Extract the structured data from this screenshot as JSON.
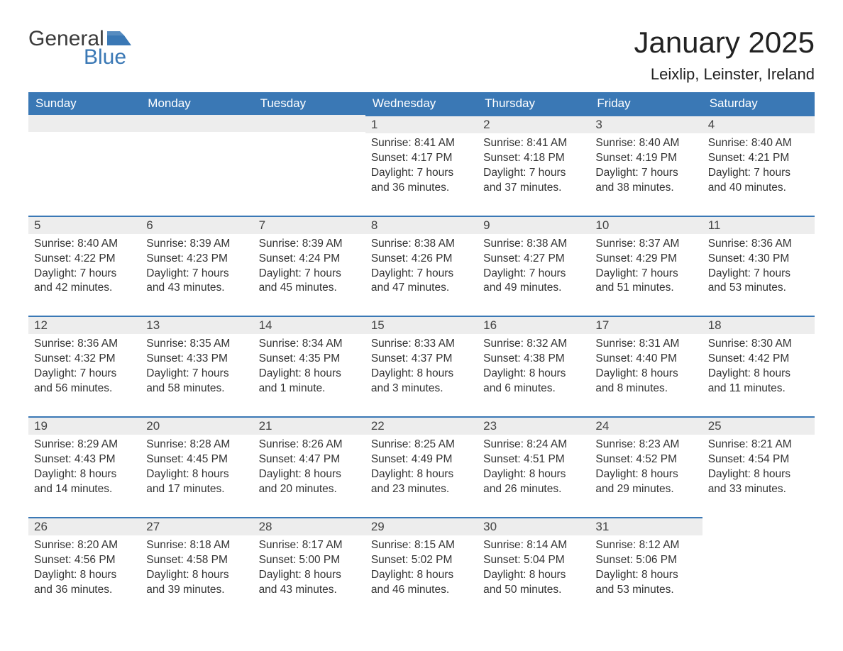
{
  "brand": {
    "general": "General",
    "blue": "Blue",
    "flag_color": "#3a78b5"
  },
  "title": "January 2025",
  "subtitle": "Leixlip, Leinster, Ireland",
  "header_bg": "#3a78b5",
  "header_fg": "#ffffff",
  "datebar_bg": "#ededed",
  "datebar_border": "#3a78b5",
  "text_color": "#333333",
  "day_names": [
    "Sunday",
    "Monday",
    "Tuesday",
    "Wednesday",
    "Thursday",
    "Friday",
    "Saturday"
  ],
  "weeks": [
    [
      null,
      null,
      null,
      {
        "n": "1",
        "sr": "Sunrise: 8:41 AM",
        "ss": "Sunset: 4:17 PM",
        "d1": "Daylight: 7 hours",
        "d2": "and 36 minutes."
      },
      {
        "n": "2",
        "sr": "Sunrise: 8:41 AM",
        "ss": "Sunset: 4:18 PM",
        "d1": "Daylight: 7 hours",
        "d2": "and 37 minutes."
      },
      {
        "n": "3",
        "sr": "Sunrise: 8:40 AM",
        "ss": "Sunset: 4:19 PM",
        "d1": "Daylight: 7 hours",
        "d2": "and 38 minutes."
      },
      {
        "n": "4",
        "sr": "Sunrise: 8:40 AM",
        "ss": "Sunset: 4:21 PM",
        "d1": "Daylight: 7 hours",
        "d2": "and 40 minutes."
      }
    ],
    [
      {
        "n": "5",
        "sr": "Sunrise: 8:40 AM",
        "ss": "Sunset: 4:22 PM",
        "d1": "Daylight: 7 hours",
        "d2": "and 42 minutes."
      },
      {
        "n": "6",
        "sr": "Sunrise: 8:39 AM",
        "ss": "Sunset: 4:23 PM",
        "d1": "Daylight: 7 hours",
        "d2": "and 43 minutes."
      },
      {
        "n": "7",
        "sr": "Sunrise: 8:39 AM",
        "ss": "Sunset: 4:24 PM",
        "d1": "Daylight: 7 hours",
        "d2": "and 45 minutes."
      },
      {
        "n": "8",
        "sr": "Sunrise: 8:38 AM",
        "ss": "Sunset: 4:26 PM",
        "d1": "Daylight: 7 hours",
        "d2": "and 47 minutes."
      },
      {
        "n": "9",
        "sr": "Sunrise: 8:38 AM",
        "ss": "Sunset: 4:27 PM",
        "d1": "Daylight: 7 hours",
        "d2": "and 49 minutes."
      },
      {
        "n": "10",
        "sr": "Sunrise: 8:37 AM",
        "ss": "Sunset: 4:29 PM",
        "d1": "Daylight: 7 hours",
        "d2": "and 51 minutes."
      },
      {
        "n": "11",
        "sr": "Sunrise: 8:36 AM",
        "ss": "Sunset: 4:30 PM",
        "d1": "Daylight: 7 hours",
        "d2": "and 53 minutes."
      }
    ],
    [
      {
        "n": "12",
        "sr": "Sunrise: 8:36 AM",
        "ss": "Sunset: 4:32 PM",
        "d1": "Daylight: 7 hours",
        "d2": "and 56 minutes."
      },
      {
        "n": "13",
        "sr": "Sunrise: 8:35 AM",
        "ss": "Sunset: 4:33 PM",
        "d1": "Daylight: 7 hours",
        "d2": "and 58 minutes."
      },
      {
        "n": "14",
        "sr": "Sunrise: 8:34 AM",
        "ss": "Sunset: 4:35 PM",
        "d1": "Daylight: 8 hours",
        "d2": "and 1 minute."
      },
      {
        "n": "15",
        "sr": "Sunrise: 8:33 AM",
        "ss": "Sunset: 4:37 PM",
        "d1": "Daylight: 8 hours",
        "d2": "and 3 minutes."
      },
      {
        "n": "16",
        "sr": "Sunrise: 8:32 AM",
        "ss": "Sunset: 4:38 PM",
        "d1": "Daylight: 8 hours",
        "d2": "and 6 minutes."
      },
      {
        "n": "17",
        "sr": "Sunrise: 8:31 AM",
        "ss": "Sunset: 4:40 PM",
        "d1": "Daylight: 8 hours",
        "d2": "and 8 minutes."
      },
      {
        "n": "18",
        "sr": "Sunrise: 8:30 AM",
        "ss": "Sunset: 4:42 PM",
        "d1": "Daylight: 8 hours",
        "d2": "and 11 minutes."
      }
    ],
    [
      {
        "n": "19",
        "sr": "Sunrise: 8:29 AM",
        "ss": "Sunset: 4:43 PM",
        "d1": "Daylight: 8 hours",
        "d2": "and 14 minutes."
      },
      {
        "n": "20",
        "sr": "Sunrise: 8:28 AM",
        "ss": "Sunset: 4:45 PM",
        "d1": "Daylight: 8 hours",
        "d2": "and 17 minutes."
      },
      {
        "n": "21",
        "sr": "Sunrise: 8:26 AM",
        "ss": "Sunset: 4:47 PM",
        "d1": "Daylight: 8 hours",
        "d2": "and 20 minutes."
      },
      {
        "n": "22",
        "sr": "Sunrise: 8:25 AM",
        "ss": "Sunset: 4:49 PM",
        "d1": "Daylight: 8 hours",
        "d2": "and 23 minutes."
      },
      {
        "n": "23",
        "sr": "Sunrise: 8:24 AM",
        "ss": "Sunset: 4:51 PM",
        "d1": "Daylight: 8 hours",
        "d2": "and 26 minutes."
      },
      {
        "n": "24",
        "sr": "Sunrise: 8:23 AM",
        "ss": "Sunset: 4:52 PM",
        "d1": "Daylight: 8 hours",
        "d2": "and 29 minutes."
      },
      {
        "n": "25",
        "sr": "Sunrise: 8:21 AM",
        "ss": "Sunset: 4:54 PM",
        "d1": "Daylight: 8 hours",
        "d2": "and 33 minutes."
      }
    ],
    [
      {
        "n": "26",
        "sr": "Sunrise: 8:20 AM",
        "ss": "Sunset: 4:56 PM",
        "d1": "Daylight: 8 hours",
        "d2": "and 36 minutes."
      },
      {
        "n": "27",
        "sr": "Sunrise: 8:18 AM",
        "ss": "Sunset: 4:58 PM",
        "d1": "Daylight: 8 hours",
        "d2": "and 39 minutes."
      },
      {
        "n": "28",
        "sr": "Sunrise: 8:17 AM",
        "ss": "Sunset: 5:00 PM",
        "d1": "Daylight: 8 hours",
        "d2": "and 43 minutes."
      },
      {
        "n": "29",
        "sr": "Sunrise: 8:15 AM",
        "ss": "Sunset: 5:02 PM",
        "d1": "Daylight: 8 hours",
        "d2": "and 46 minutes."
      },
      {
        "n": "30",
        "sr": "Sunrise: 8:14 AM",
        "ss": "Sunset: 5:04 PM",
        "d1": "Daylight: 8 hours",
        "d2": "and 50 minutes."
      },
      {
        "n": "31",
        "sr": "Sunrise: 8:12 AM",
        "ss": "Sunset: 5:06 PM",
        "d1": "Daylight: 8 hours",
        "d2": "and 53 minutes."
      },
      null
    ]
  ]
}
